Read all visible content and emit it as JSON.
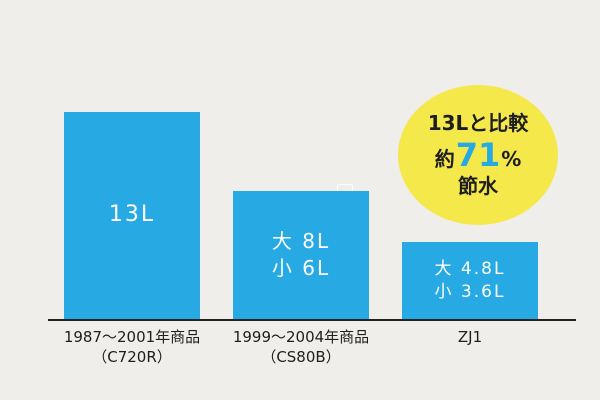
{
  "chart_data": {
    "type": "bar",
    "categories": [
      {
        "line1": "1987～2001年商品",
        "line2": "（C720R）"
      },
      {
        "line1": "1999～2004年商品",
        "line2": "（CS80B）"
      },
      {
        "line1": "ZJ1",
        "line2": ""
      }
    ],
    "values": [
      13,
      8,
      4.8
    ],
    "bar_labels": [
      {
        "line1": "13L",
        "line2": ""
      },
      {
        "line1": "大 8L",
        "line2": "小 6L"
      },
      {
        "line1": "大 4.8L",
        "line2": "小 3.6L"
      }
    ],
    "ylim": [
      0,
      20
    ],
    "grid": false,
    "bar_color": "#27aae3",
    "annotation": {
      "line1": "13Lと比較",
      "line2_prefix": "約",
      "line2_number": "71",
      "line2_suffix": "%",
      "line3": "節水",
      "circle_color": "#f4e84b",
      "highlight_color": "#27aae3"
    }
  }
}
